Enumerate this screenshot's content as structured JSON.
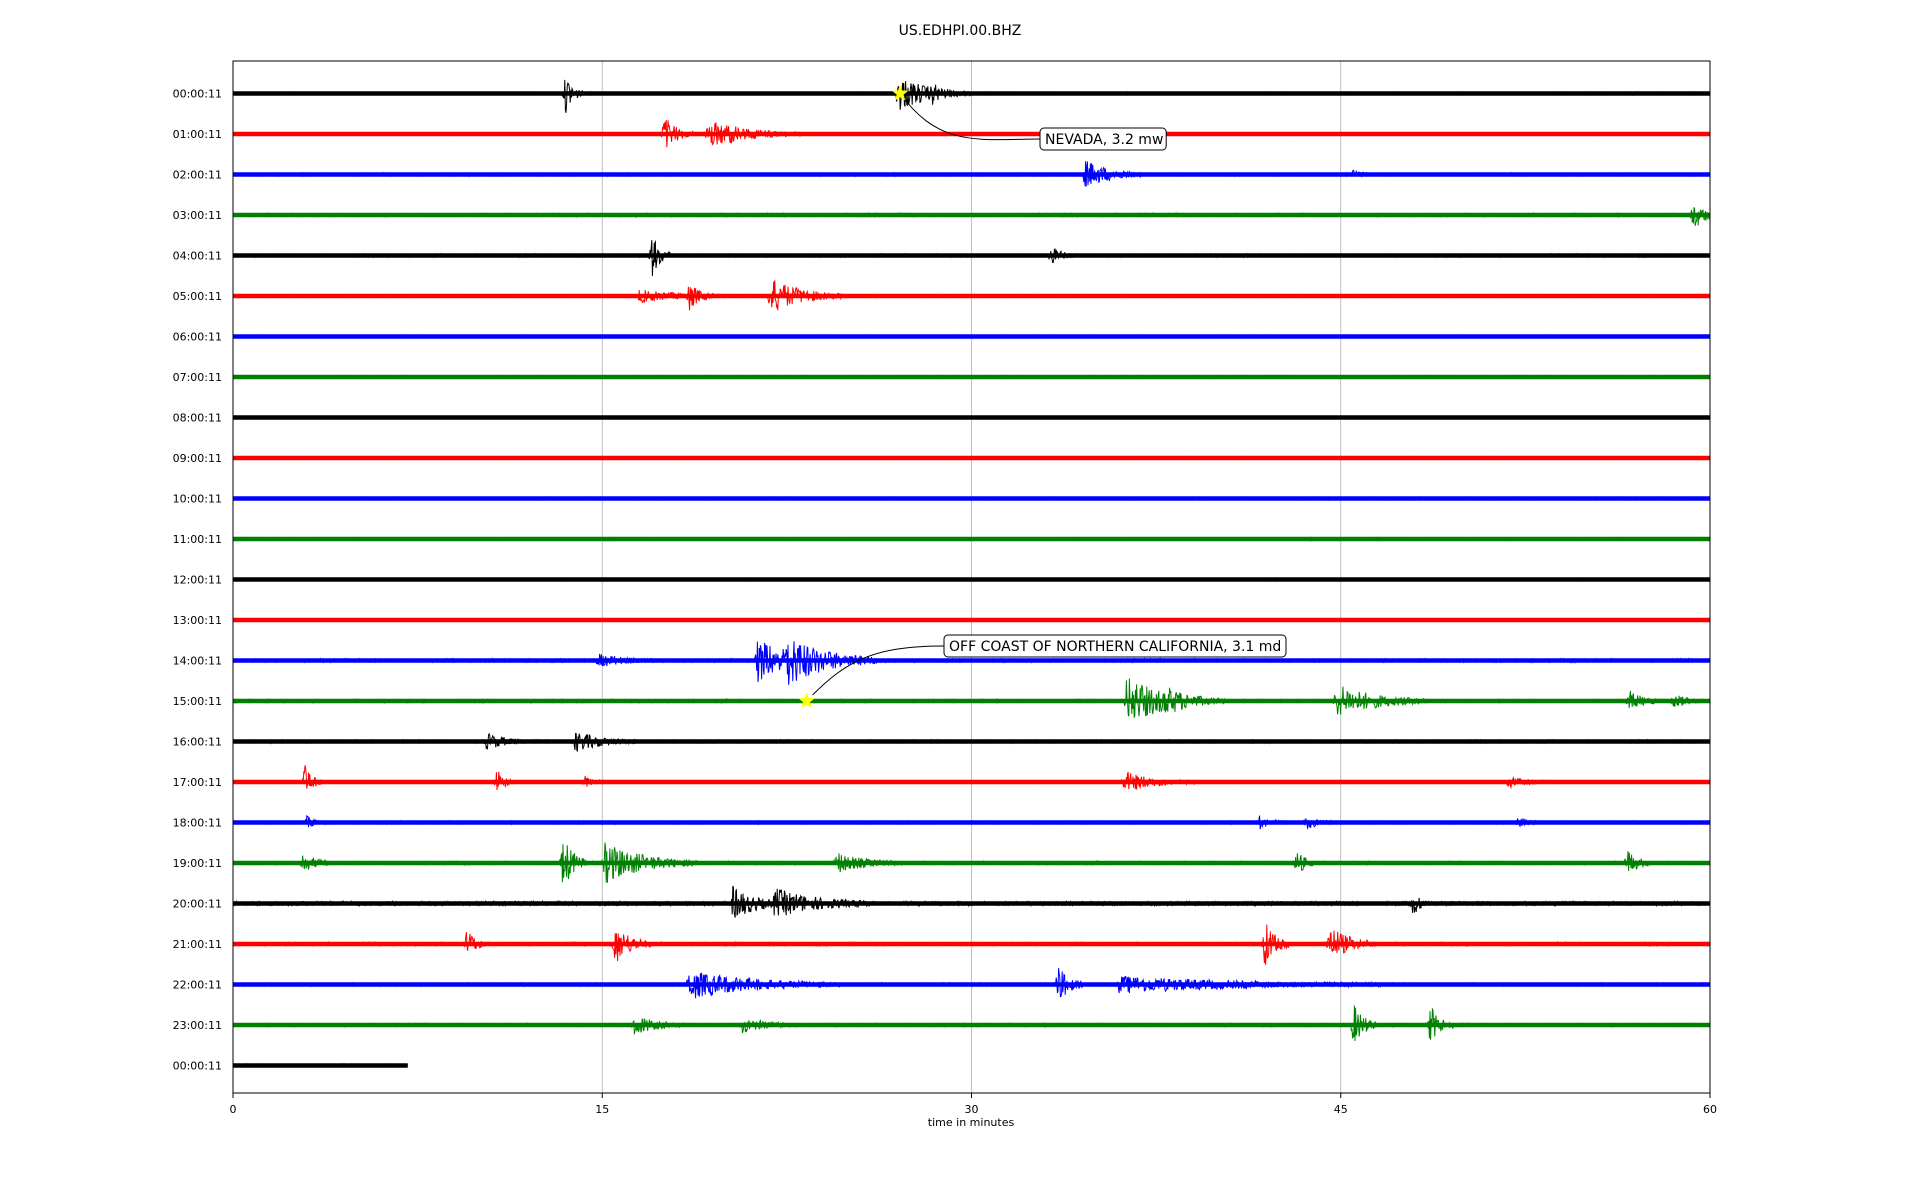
{
  "chart_data": {
    "type": "line",
    "title": "US.EDHPI.00.BHZ",
    "xlabel": "time in minutes",
    "ylabel": "",
    "xlim": [
      0,
      60
    ],
    "x_ticks": [
      "0",
      "15",
      "30",
      "45",
      "60"
    ],
    "grid": "vertical lines at 15, 30, 45",
    "colors": [
      "#000000",
      "#ff0000",
      "#0000ff",
      "#008000"
    ],
    "rows": [
      {
        "label": "00:00:11",
        "color": "#000000",
        "end_minute": 60,
        "noise": 1.1,
        "events": [
          {
            "t": 13.5,
            "amp": 20,
            "dur": 0.3
          },
          {
            "t": 27.0,
            "amp": 18,
            "dur": 1.2
          },
          {
            "t": 28.4,
            "amp": 12,
            "dur": 0.4
          }
        ]
      },
      {
        "label": "01:00:11",
        "color": "#ff0000",
        "end_minute": 60,
        "noise": 1.0,
        "events": [
          {
            "t": 17.5,
            "amp": 18,
            "dur": 0.5
          },
          {
            "t": 19.3,
            "amp": 14,
            "dur": 1.5
          },
          {
            "t": 20.2,
            "amp": 10,
            "dur": 0.3
          }
        ]
      },
      {
        "label": "02:00:11",
        "color": "#0000ff",
        "end_minute": 60,
        "noise": 1.2,
        "events": [
          {
            "t": 34.6,
            "amp": 14,
            "dur": 1.0
          },
          {
            "t": 45.5,
            "amp": 5,
            "dur": 0.3
          }
        ]
      },
      {
        "label": "03:00:11",
        "color": "#008000",
        "end_minute": 60,
        "noise": 1.4,
        "events": [
          {
            "t": 59.3,
            "amp": 14,
            "dur": 0.5
          }
        ]
      },
      {
        "label": "04:00:11",
        "color": "#000000",
        "end_minute": 60,
        "noise": 1.3,
        "events": [
          {
            "t": 17.0,
            "amp": 24,
            "dur": 0.3
          },
          {
            "t": 33.2,
            "amp": 9,
            "dur": 0.4
          }
        ]
      },
      {
        "label": "05:00:11",
        "color": "#ff0000",
        "end_minute": 60,
        "noise": 1.1,
        "events": [
          {
            "t": 16.5,
            "amp": 6,
            "dur": 1.5
          },
          {
            "t": 18.5,
            "amp": 15,
            "dur": 0.4
          },
          {
            "t": 21.8,
            "amp": 18,
            "dur": 1.2
          }
        ]
      },
      {
        "label": "06:00:11",
        "color": "#0000ff",
        "end_minute": 60,
        "noise": 1.1,
        "events": []
      },
      {
        "label": "07:00:11",
        "color": "#008000",
        "end_minute": 60,
        "noise": 1.1,
        "events": []
      },
      {
        "label": "08:00:11",
        "color": "#000000",
        "end_minute": 60,
        "noise": 1.0,
        "events": []
      },
      {
        "label": "09:00:11",
        "color": "#ff0000",
        "end_minute": 60,
        "noise": 1.0,
        "events": []
      },
      {
        "label": "10:00:11",
        "color": "#0000ff",
        "end_minute": 60,
        "noise": 1.1,
        "events": []
      },
      {
        "label": "11:00:11",
        "color": "#008000",
        "end_minute": 60,
        "noise": 1.1,
        "events": []
      },
      {
        "label": "12:00:11",
        "color": "#000000",
        "end_minute": 60,
        "noise": 1.0,
        "events": []
      },
      {
        "label": "13:00:11",
        "color": "#ff0000",
        "end_minute": 60,
        "noise": 1.0,
        "events": []
      },
      {
        "label": "14:00:11",
        "color": "#0000ff",
        "end_minute": 60,
        "noise": 1.5,
        "events": [
          {
            "t": 14.8,
            "amp": 6,
            "dur": 1.0
          },
          {
            "t": 21.3,
            "amp": 22,
            "dur": 1.2
          },
          {
            "t": 22.4,
            "amp": 28,
            "dur": 1.5
          },
          {
            "t": 24.0,
            "amp": 10,
            "dur": 1.0
          }
        ]
      },
      {
        "label": "15:00:11",
        "color": "#008000",
        "end_minute": 60,
        "noise": 1.4,
        "events": [
          {
            "t": 36.3,
            "amp": 24,
            "dur": 1.5
          },
          {
            "t": 37.8,
            "amp": 16,
            "dur": 1.0
          },
          {
            "t": 44.8,
            "amp": 16,
            "dur": 1.5
          },
          {
            "t": 56.7,
            "amp": 10,
            "dur": 0.5
          },
          {
            "t": 58.5,
            "amp": 7,
            "dur": 0.5
          }
        ]
      },
      {
        "label": "16:00:11",
        "color": "#000000",
        "end_minute": 60,
        "noise": 1.3,
        "events": [
          {
            "t": 10.3,
            "amp": 8,
            "dur": 0.7
          },
          {
            "t": 13.9,
            "amp": 10,
            "dur": 1.0
          }
        ]
      },
      {
        "label": "17:00:11",
        "color": "#ff0000",
        "end_minute": 60,
        "noise": 1.1,
        "events": [
          {
            "t": 2.9,
            "amp": 18,
            "dur": 0.3
          },
          {
            "t": 10.7,
            "amp": 14,
            "dur": 0.3
          },
          {
            "t": 14.3,
            "amp": 6,
            "dur": 0.3
          },
          {
            "t": 36.2,
            "amp": 10,
            "dur": 1.2
          },
          {
            "t": 51.8,
            "amp": 5,
            "dur": 0.8
          }
        ]
      },
      {
        "label": "18:00:11",
        "color": "#0000ff",
        "end_minute": 60,
        "noise": 1.2,
        "events": [
          {
            "t": 3.0,
            "amp": 6,
            "dur": 0.3
          },
          {
            "t": 41.7,
            "amp": 6,
            "dur": 0.4
          },
          {
            "t": 43.6,
            "amp": 7,
            "dur": 0.4
          },
          {
            "t": 52.2,
            "amp": 4,
            "dur": 0.4
          }
        ]
      },
      {
        "label": "19:00:11",
        "color": "#008000",
        "end_minute": 60,
        "noise": 1.4,
        "events": [
          {
            "t": 2.8,
            "amp": 10,
            "dur": 0.5
          },
          {
            "t": 13.4,
            "amp": 28,
            "dur": 0.4
          },
          {
            "t": 15.1,
            "amp": 20,
            "dur": 1.5
          },
          {
            "t": 24.5,
            "amp": 10,
            "dur": 1.0
          },
          {
            "t": 43.2,
            "amp": 14,
            "dur": 0.3
          },
          {
            "t": 56.6,
            "amp": 14,
            "dur": 0.4
          }
        ]
      },
      {
        "label": "20:00:11",
        "color": "#000000",
        "end_minute": 60,
        "noise": 2.0,
        "events": [
          {
            "t": 20.3,
            "amp": 16,
            "dur": 0.8
          },
          {
            "t": 22.0,
            "amp": 14,
            "dur": 1.5
          },
          {
            "t": 47.9,
            "amp": 12,
            "dur": 0.3
          }
        ]
      },
      {
        "label": "21:00:11",
        "color": "#ff0000",
        "end_minute": 60,
        "noise": 1.5,
        "events": [
          {
            "t": 9.5,
            "amp": 16,
            "dur": 0.3
          },
          {
            "t": 15.5,
            "amp": 20,
            "dur": 0.6
          },
          {
            "t": 41.9,
            "amp": 24,
            "dur": 0.4
          },
          {
            "t": 44.5,
            "amp": 18,
            "dur": 0.8
          }
        ]
      },
      {
        "label": "22:00:11",
        "color": "#0000ff",
        "end_minute": 60,
        "noise": 1.3,
        "events": [
          {
            "t": 18.5,
            "amp": 14,
            "dur": 2.5
          },
          {
            "t": 33.5,
            "amp": 20,
            "dur": 0.4
          },
          {
            "t": 36.0,
            "amp": 8,
            "dur": 4.5
          }
        ]
      },
      {
        "label": "23:00:11",
        "color": "#008000",
        "end_minute": 60,
        "noise": 1.3,
        "events": [
          {
            "t": 16.3,
            "amp": 10,
            "dur": 0.8
          },
          {
            "t": 20.7,
            "amp": 8,
            "dur": 0.8
          },
          {
            "t": 45.5,
            "amp": 22,
            "dur": 0.4
          },
          {
            "t": 48.6,
            "amp": 20,
            "dur": 0.4
          }
        ]
      },
      {
        "label": "00:00:11",
        "color": "#000000",
        "end_minute": 7.1,
        "noise": 1.3,
        "events": []
      }
    ],
    "annotations": [
      {
        "text": "NEVADA, 3.2 mw",
        "row": 0,
        "t": 27.1
      },
      {
        "text": "OFF COAST OF NORTHERN CALIFORNIA, 3.1 md",
        "row": 15,
        "t": 23.3
      }
    ]
  }
}
